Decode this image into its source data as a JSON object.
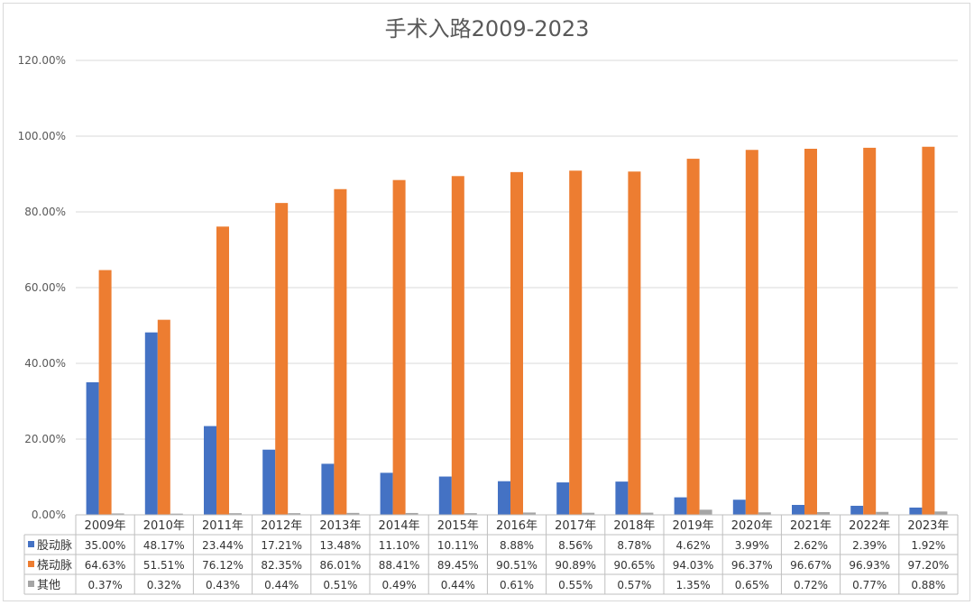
{
  "chart_data": {
    "type": "bar",
    "title": "手术入路2009-2023",
    "xlabel": "",
    "ylabel": "",
    "ylim": [
      0,
      120
    ],
    "yticks": [
      "0.00%",
      "20.00%",
      "40.00%",
      "60.00%",
      "80.00%",
      "100.00%",
      "120.00%"
    ],
    "grid": true,
    "legend": "data-table",
    "categories": [
      "2009年",
      "2010年",
      "2011年",
      "2012年",
      "2013年",
      "2014年",
      "2015年",
      "2016年",
      "2017年",
      "2018年",
      "2019年",
      "2020年",
      "2021年",
      "2022年",
      "2023年"
    ],
    "series": [
      {
        "name": "股动脉",
        "color": "#4472C4",
        "values": [
          35.0,
          48.17,
          23.44,
          17.21,
          13.48,
          11.1,
          10.11,
          8.88,
          8.56,
          8.78,
          4.62,
          3.99,
          2.62,
          2.39,
          1.92
        ],
        "labels": [
          "35.00%",
          "48.17%",
          "23.44%",
          "17.21%",
          "13.48%",
          "11.10%",
          "10.11%",
          "8.88%",
          "8.56%",
          "8.78%",
          "4.62%",
          "3.99%",
          "2.62%",
          "2.39%",
          "1.92%"
        ]
      },
      {
        "name": "桡动脉",
        "color": "#ED7D31",
        "values": [
          64.63,
          51.51,
          76.12,
          82.35,
          86.01,
          88.41,
          89.45,
          90.51,
          90.89,
          90.65,
          94.03,
          96.37,
          96.67,
          96.93,
          97.2
        ],
        "labels": [
          "64.63%",
          "51.51%",
          "76.12%",
          "82.35%",
          "86.01%",
          "88.41%",
          "89.45%",
          "90.51%",
          "90.89%",
          "90.65%",
          "94.03%",
          "96.37%",
          "96.67%",
          "96.93%",
          "97.20%"
        ]
      },
      {
        "name": "其他",
        "color": "#A5A5A5",
        "values": [
          0.37,
          0.32,
          0.43,
          0.44,
          0.51,
          0.49,
          0.44,
          0.61,
          0.55,
          0.57,
          1.35,
          0.65,
          0.72,
          0.77,
          0.88
        ],
        "labels": [
          "0.37%",
          "0.32%",
          "0.43%",
          "0.44%",
          "0.51%",
          "0.49%",
          "0.44%",
          "0.61%",
          "0.55%",
          "0.57%",
          "1.35%",
          "0.65%",
          "0.72%",
          "0.77%",
          "0.88%"
        ]
      }
    ]
  }
}
